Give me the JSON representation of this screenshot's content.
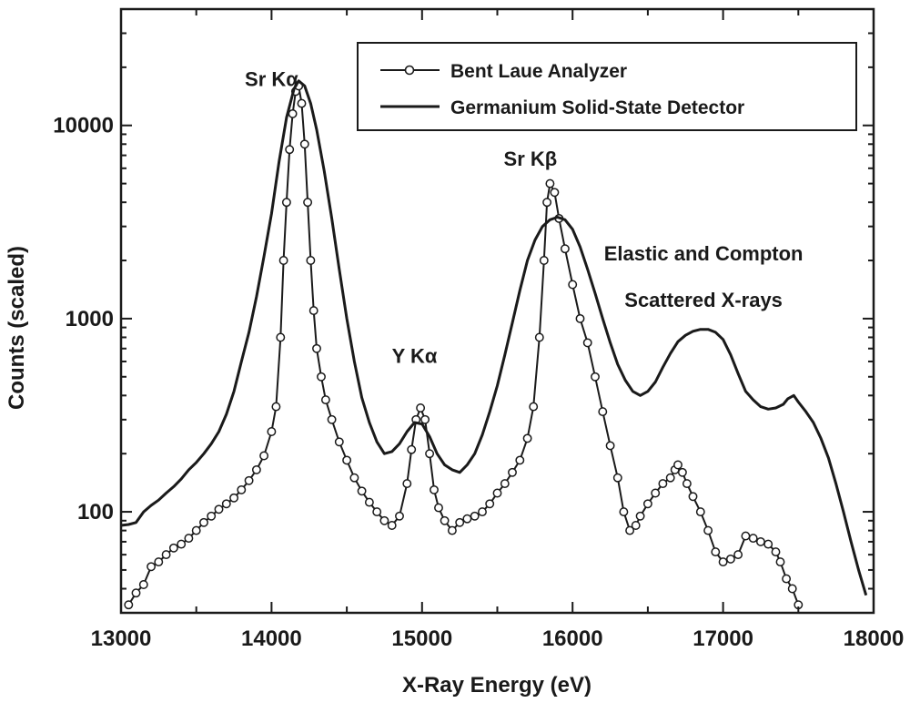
{
  "chart_data": {
    "type": "line",
    "xlabel": "X-Ray Energy (eV)",
    "ylabel": "Counts (scaled)",
    "xlim": [
      13000,
      18000
    ],
    "ylim": [
      30,
      40000
    ],
    "y_scale": "log",
    "x_ticks": [
      13000,
      14000,
      15000,
      16000,
      17000,
      18000
    ],
    "x_tick_labels": [
      "13000",
      "14000",
      "15000",
      "16000",
      "17000",
      "18000"
    ],
    "y_ticks": [
      100,
      1000,
      10000
    ],
    "y_tick_labels": [
      "100",
      "1000",
      "10000"
    ],
    "grid": false,
    "legend_position": "top-right",
    "annotations": [
      {
        "text": "Sr Kα",
        "x": 14000,
        "y": 16000
      },
      {
        "text": "Y Kα",
        "x": 14950,
        "y": 590
      },
      {
        "text": "Sr Kβ",
        "x": 15720,
        "y": 6200
      },
      {
        "text": "Elastic and Compton",
        "x": 16870,
        "y": 2000
      },
      {
        "text": "Scattered X-rays",
        "x": 16870,
        "y": 1150
      }
    ],
    "series": [
      {
        "name": "Bent Laue Analyzer",
        "style": "line-with-open-circles",
        "color": "#1a1a1a",
        "points": [
          [
            13050,
            33
          ],
          [
            13100,
            38
          ],
          [
            13150,
            42
          ],
          [
            13200,
            52
          ],
          [
            13250,
            55
          ],
          [
            13300,
            60
          ],
          [
            13350,
            65
          ],
          [
            13400,
            68
          ],
          [
            13450,
            73
          ],
          [
            13500,
            80
          ],
          [
            13550,
            88
          ],
          [
            13600,
            95
          ],
          [
            13650,
            103
          ],
          [
            13700,
            110
          ],
          [
            13750,
            118
          ],
          [
            13800,
            130
          ],
          [
            13850,
            145
          ],
          [
            13900,
            165
          ],
          [
            13950,
            195
          ],
          [
            14000,
            260
          ],
          [
            14030,
            350
          ],
          [
            14060,
            800
          ],
          [
            14080,
            2000
          ],
          [
            14100,
            4000
          ],
          [
            14120,
            7500
          ],
          [
            14140,
            11500
          ],
          [
            14160,
            15000
          ],
          [
            14180,
            16000
          ],
          [
            14200,
            13000
          ],
          [
            14220,
            8000
          ],
          [
            14240,
            4000
          ],
          [
            14260,
            2000
          ],
          [
            14280,
            1100
          ],
          [
            14300,
            700
          ],
          [
            14330,
            500
          ],
          [
            14360,
            380
          ],
          [
            14400,
            300
          ],
          [
            14450,
            230
          ],
          [
            14500,
            185
          ],
          [
            14550,
            150
          ],
          [
            14600,
            128
          ],
          [
            14650,
            112
          ],
          [
            14700,
            100
          ],
          [
            14750,
            90
          ],
          [
            14800,
            85
          ],
          [
            14850,
            95
          ],
          [
            14900,
            140
          ],
          [
            14930,
            210
          ],
          [
            14960,
            300
          ],
          [
            14990,
            345
          ],
          [
            15020,
            300
          ],
          [
            15050,
            200
          ],
          [
            15080,
            130
          ],
          [
            15110,
            105
          ],
          [
            15150,
            90
          ],
          [
            15200,
            80
          ],
          [
            15250,
            88
          ],
          [
            15300,
            92
          ],
          [
            15350,
            95
          ],
          [
            15400,
            100
          ],
          [
            15450,
            110
          ],
          [
            15500,
            125
          ],
          [
            15550,
            140
          ],
          [
            15600,
            160
          ],
          [
            15650,
            185
          ],
          [
            15700,
            240
          ],
          [
            15740,
            350
          ],
          [
            15780,
            800
          ],
          [
            15810,
            2000
          ],
          [
            15830,
            4000
          ],
          [
            15850,
            5000
          ],
          [
            15880,
            4500
          ],
          [
            15910,
            3300
          ],
          [
            15950,
            2300
          ],
          [
            16000,
            1500
          ],
          [
            16050,
            1000
          ],
          [
            16100,
            750
          ],
          [
            16150,
            500
          ],
          [
            16200,
            330
          ],
          [
            16250,
            220
          ],
          [
            16300,
            150
          ],
          [
            16340,
            100
          ],
          [
            16380,
            80
          ],
          [
            16420,
            85
          ],
          [
            16450,
            95
          ],
          [
            16500,
            110
          ],
          [
            16550,
            125
          ],
          [
            16600,
            140
          ],
          [
            16650,
            150
          ],
          [
            16680,
            165
          ],
          [
            16700,
            175
          ],
          [
            16730,
            160
          ],
          [
            16760,
            140
          ],
          [
            16800,
            120
          ],
          [
            16850,
            100
          ],
          [
            16900,
            80
          ],
          [
            16950,
            62
          ],
          [
            17000,
            55
          ],
          [
            17050,
            57
          ],
          [
            17100,
            60
          ],
          [
            17150,
            75
          ],
          [
            17200,
            73
          ],
          [
            17250,
            70
          ],
          [
            17300,
            68
          ],
          [
            17350,
            62
          ],
          [
            17380,
            55
          ],
          [
            17420,
            45
          ],
          [
            17460,
            40
          ],
          [
            17500,
            33
          ]
        ]
      },
      {
        "name": "Germanium Solid-State Detector",
        "style": "solid-line",
        "color": "#1a1a1a",
        "points": [
          [
            13000,
            85
          ],
          [
            13050,
            86
          ],
          [
            13100,
            88
          ],
          [
            13150,
            100
          ],
          [
            13200,
            108
          ],
          [
            13250,
            115
          ],
          [
            13300,
            125
          ],
          [
            13350,
            135
          ],
          [
            13400,
            148
          ],
          [
            13450,
            165
          ],
          [
            13500,
            180
          ],
          [
            13550,
            200
          ],
          [
            13600,
            225
          ],
          [
            13650,
            260
          ],
          [
            13700,
            320
          ],
          [
            13750,
            420
          ],
          [
            13800,
            600
          ],
          [
            13850,
            850
          ],
          [
            13900,
            1300
          ],
          [
            13950,
            2100
          ],
          [
            14000,
            3500
          ],
          [
            14050,
            6500
          ],
          [
            14100,
            11000
          ],
          [
            14150,
            15500
          ],
          [
            14180,
            17000
          ],
          [
            14220,
            16000
          ],
          [
            14260,
            13000
          ],
          [
            14300,
            9500
          ],
          [
            14350,
            5800
          ],
          [
            14400,
            3300
          ],
          [
            14450,
            1800
          ],
          [
            14500,
            1000
          ],
          [
            14550,
            600
          ],
          [
            14600,
            390
          ],
          [
            14650,
            290
          ],
          [
            14700,
            230
          ],
          [
            14750,
            200
          ],
          [
            14800,
            205
          ],
          [
            14850,
            225
          ],
          [
            14900,
            260
          ],
          [
            14950,
            290
          ],
          [
            15000,
            285
          ],
          [
            15050,
            245
          ],
          [
            15100,
            200
          ],
          [
            15150,
            175
          ],
          [
            15200,
            165
          ],
          [
            15250,
            160
          ],
          [
            15300,
            175
          ],
          [
            15350,
            200
          ],
          [
            15400,
            250
          ],
          [
            15450,
            330
          ],
          [
            15500,
            450
          ],
          [
            15550,
            650
          ],
          [
            15600,
            950
          ],
          [
            15650,
            1400
          ],
          [
            15700,
            2000
          ],
          [
            15750,
            2550
          ],
          [
            15800,
            3000
          ],
          [
            15850,
            3250
          ],
          [
            15900,
            3350
          ],
          [
            15950,
            3250
          ],
          [
            16000,
            2900
          ],
          [
            16050,
            2350
          ],
          [
            16100,
            1800
          ],
          [
            16150,
            1350
          ],
          [
            16200,
            1000
          ],
          [
            16250,
            750
          ],
          [
            16300,
            580
          ],
          [
            16350,
            480
          ],
          [
            16400,
            420
          ],
          [
            16450,
            400
          ],
          [
            16500,
            420
          ],
          [
            16550,
            470
          ],
          [
            16600,
            560
          ],
          [
            16650,
            660
          ],
          [
            16700,
            760
          ],
          [
            16750,
            820
          ],
          [
            16800,
            860
          ],
          [
            16850,
            880
          ],
          [
            16900,
            880
          ],
          [
            16950,
            850
          ],
          [
            17000,
            780
          ],
          [
            17050,
            650
          ],
          [
            17100,
            520
          ],
          [
            17150,
            420
          ],
          [
            17200,
            380
          ],
          [
            17250,
            350
          ],
          [
            17300,
            340
          ],
          [
            17350,
            345
          ],
          [
            17400,
            360
          ],
          [
            17430,
            385
          ],
          [
            17470,
            400
          ],
          [
            17500,
            370
          ],
          [
            17550,
            330
          ],
          [
            17600,
            290
          ],
          [
            17650,
            240
          ],
          [
            17700,
            190
          ],
          [
            17750,
            140
          ],
          [
            17800,
            100
          ],
          [
            17850,
            70
          ],
          [
            17900,
            50
          ],
          [
            17950,
            37
          ]
        ]
      }
    ]
  }
}
